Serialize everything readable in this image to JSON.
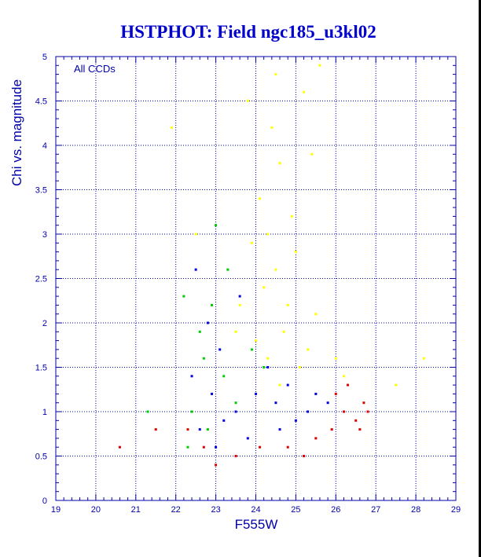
{
  "chart_data": {
    "type": "scatter",
    "title": "HSTPHOT: Field ngc185_u3kl02",
    "xlabel": "F555W",
    "ylabel": "Chi vs. magnitude",
    "annotation": "All CCDs",
    "xlim": [
      19,
      29
    ],
    "ylim": [
      0,
      5
    ],
    "x_ticks": [
      "19",
      "20",
      "21",
      "22",
      "23",
      "24",
      "25",
      "26",
      "27",
      "28",
      "29"
    ],
    "y_ticks": [
      "0",
      "0.5",
      "1",
      "1.5",
      "2",
      "2.5",
      "3",
      "3.5",
      "4",
      "4.5",
      "5"
    ],
    "grid": true,
    "colors": {
      "title": "#0000cc",
      "axis": "#0000aa",
      "grid": "#0000aa",
      "ccd_yellow": "#ffff00",
      "ccd_green": "#00cc00",
      "ccd_blue": "#0000dd",
      "ccd_red": "#dd0000"
    },
    "series": [
      {
        "color": "#ffff00",
        "points": [
          [
            24.5,
            2.6
          ],
          [
            24.3,
            3.0
          ],
          [
            24.8,
            2.2
          ],
          [
            24.1,
            3.4
          ],
          [
            24.6,
            3.8
          ],
          [
            25.0,
            2.8
          ],
          [
            24.2,
            2.4
          ],
          [
            23.9,
            2.9
          ],
          [
            24.4,
            4.2
          ],
          [
            25.2,
            4.6
          ],
          [
            24.7,
            1.9
          ],
          [
            25.5,
            2.1
          ],
          [
            23.6,
            2.2
          ],
          [
            24.0,
            1.8
          ],
          [
            25.3,
            1.7
          ],
          [
            26.0,
            1.6
          ],
          [
            24.9,
            3.2
          ],
          [
            25.4,
            3.9
          ],
          [
            24.5,
            4.8
          ],
          [
            23.8,
            4.5
          ],
          [
            25.6,
            4.9
          ],
          [
            26.2,
            1.4
          ],
          [
            27.5,
            1.3
          ],
          [
            28.2,
            1.6
          ],
          [
            22.5,
            3.0
          ],
          [
            21.9,
            4.2
          ],
          [
            24.3,
            1.6
          ],
          [
            25.1,
            1.5
          ],
          [
            24.6,
            1.3
          ],
          [
            23.5,
            1.9
          ]
        ]
      },
      {
        "color": "#00cc00",
        "points": [
          [
            22.6,
            1.9
          ],
          [
            22.9,
            2.2
          ],
          [
            23.2,
            1.4
          ],
          [
            22.4,
            1.0
          ],
          [
            23.5,
            1.1
          ],
          [
            22.8,
            0.8
          ],
          [
            23.9,
            1.7
          ],
          [
            22.2,
            2.3
          ],
          [
            23.0,
            3.1
          ],
          [
            22.7,
            1.6
          ],
          [
            24.2,
            1.5
          ],
          [
            21.3,
            1.0
          ],
          [
            23.3,
            2.6
          ],
          [
            22.3,
            0.6
          ]
        ]
      },
      {
        "color": "#0000dd",
        "points": [
          [
            23.5,
            1.0
          ],
          [
            24.0,
            1.2
          ],
          [
            24.5,
            1.1
          ],
          [
            25.0,
            0.9
          ],
          [
            25.3,
            1.0
          ],
          [
            24.8,
            1.3
          ],
          [
            23.2,
            0.9
          ],
          [
            22.9,
            1.2
          ],
          [
            22.6,
            0.8
          ],
          [
            23.8,
            0.7
          ],
          [
            25.5,
            1.2
          ],
          [
            24.3,
            1.5
          ],
          [
            23.1,
            1.7
          ],
          [
            22.4,
            1.4
          ],
          [
            22.8,
            2.0
          ],
          [
            23.6,
            2.3
          ],
          [
            22.5,
            2.6
          ],
          [
            25.8,
            1.1
          ],
          [
            23.0,
            0.6
          ],
          [
            24.6,
            0.8
          ]
        ]
      },
      {
        "color": "#dd0000",
        "points": [
          [
            26.2,
            1.0
          ],
          [
            26.5,
            0.9
          ],
          [
            26.7,
            1.1
          ],
          [
            25.9,
            0.8
          ],
          [
            26.0,
            1.2
          ],
          [
            26.3,
            1.3
          ],
          [
            26.6,
            0.8
          ],
          [
            25.5,
            0.7
          ],
          [
            24.8,
            0.6
          ],
          [
            23.5,
            0.5
          ],
          [
            22.7,
            0.6
          ],
          [
            23.0,
            0.4
          ],
          [
            24.1,
            0.6
          ],
          [
            26.8,
            1.0
          ],
          [
            21.5,
            0.8
          ],
          [
            20.6,
            0.6
          ],
          [
            25.2,
            0.5
          ],
          [
            22.3,
            0.8
          ]
        ]
      }
    ]
  }
}
